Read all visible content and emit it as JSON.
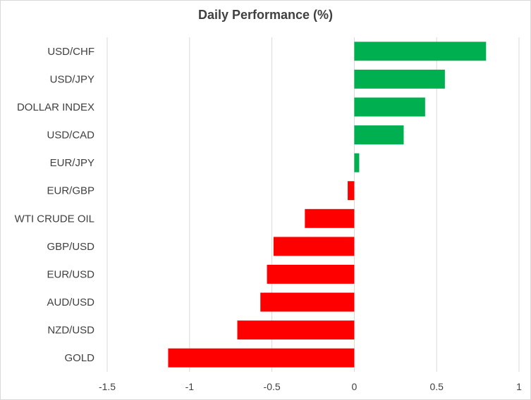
{
  "chart_data": {
    "type": "bar",
    "orientation": "horizontal",
    "title": "Daily Performance (%)",
    "categories": [
      "USD/CHF",
      "USD/JPY",
      "DOLLAR INDEX",
      "USD/CAD",
      "EUR/JPY",
      "EUR/GBP",
      "WTI CRUDE OIL",
      "GBP/USD",
      "EUR/USD",
      "AUD/USD",
      "NZD/USD",
      "GOLD"
    ],
    "values": [
      0.8,
      0.55,
      0.43,
      0.3,
      0.03,
      -0.04,
      -0.3,
      -0.49,
      -0.53,
      -0.57,
      -0.71,
      -1.13
    ],
    "xticks": [
      -1.5,
      -1,
      -0.5,
      0,
      0.5,
      1
    ],
    "xtick_labels": [
      "-1.5",
      "-1",
      "-0.5",
      "0",
      "0.5",
      "1"
    ],
    "xlim": [
      -1.5,
      1
    ],
    "grid": "vertical",
    "colors": {
      "positive": "#00b050",
      "negative": "#ff0000",
      "grid": "#d9d9d9",
      "text": "#404040"
    }
  }
}
